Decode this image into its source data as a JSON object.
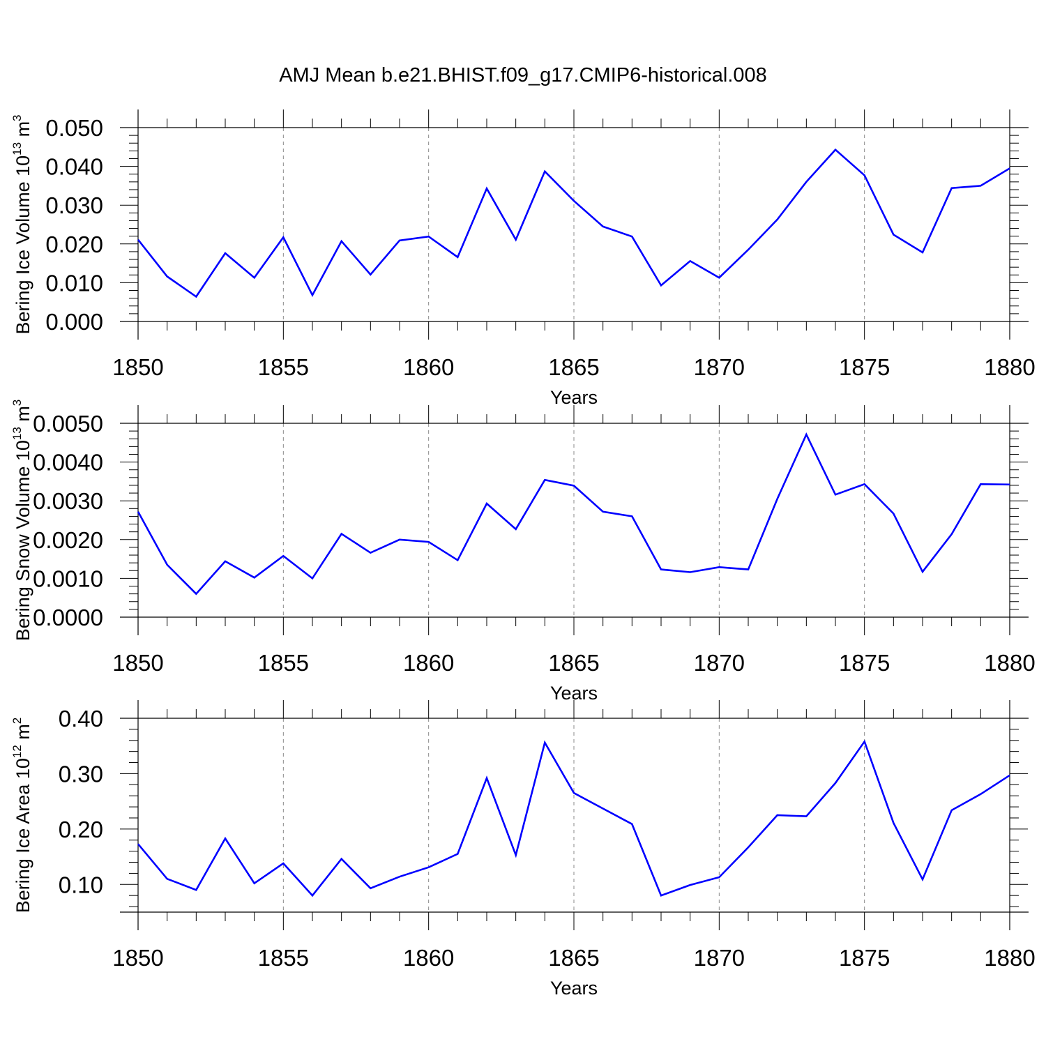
{
  "title": "AMJ Mean b.e21.BHIST.f09_g17.CMIP6-historical.008",
  "colors": {
    "line": "#0000ff",
    "axis": "#000000",
    "grid": "#888888"
  },
  "chart_data": [
    {
      "type": "line",
      "ylabel_text": "Bering Ice Volume 10",
      "ylabel_exp": "13",
      "ylabel_unit": " m",
      "ylabel_unit_exp": "3",
      "xlabel": "Years",
      "xlim": [
        1850,
        1880
      ],
      "ylim": [
        0.0,
        0.05
      ],
      "yticks": [
        "0.000",
        "0.010",
        "0.020",
        "0.030",
        "0.040",
        "0.050"
      ],
      "xticks": [
        "1850",
        "1855",
        "1860",
        "1865",
        "1870",
        "1875",
        "1880"
      ],
      "x": [
        1850,
        1851,
        1852,
        1853,
        1854,
        1855,
        1856,
        1857,
        1858,
        1859,
        1860,
        1861,
        1862,
        1863,
        1864,
        1865,
        1866,
        1867,
        1868,
        1869,
        1870,
        1871,
        1872,
        1873,
        1874,
        1875,
        1876,
        1877,
        1878,
        1879,
        1880
      ],
      "values": [
        0.0211,
        0.0116,
        0.0064,
        0.0176,
        0.0113,
        0.0217,
        0.0068,
        0.0207,
        0.0121,
        0.0209,
        0.0219,
        0.0166,
        0.0343,
        0.0211,
        0.0387,
        0.0311,
        0.0245,
        0.0219,
        0.0093,
        0.0156,
        0.0113,
        0.0185,
        0.0263,
        0.036,
        0.0443,
        0.0377,
        0.0224,
        0.0178,
        0.0344,
        0.035,
        0.0395
      ]
    },
    {
      "type": "line",
      "ylabel_text": "Bering Snow Volume 10",
      "ylabel_exp": "13",
      "ylabel_unit": " m",
      "ylabel_unit_exp": "3",
      "xlabel": "Years",
      "xlim": [
        1850,
        1880
      ],
      "ylim": [
        0.0,
        0.005
      ],
      "yticks": [
        "0.0000",
        "0.0010",
        "0.0020",
        "0.0030",
        "0.0040",
        "0.0050"
      ],
      "xticks": [
        "1850",
        "1855",
        "1860",
        "1865",
        "1870",
        "1875",
        "1880"
      ],
      "x": [
        1850,
        1851,
        1852,
        1853,
        1854,
        1855,
        1856,
        1857,
        1858,
        1859,
        1860,
        1861,
        1862,
        1863,
        1864,
        1865,
        1866,
        1867,
        1868,
        1869,
        1870,
        1871,
        1872,
        1873,
        1874,
        1875,
        1876,
        1877,
        1878,
        1879,
        1880
      ],
      "values": [
        0.00272,
        0.00135,
        0.0006,
        0.00144,
        0.00102,
        0.00158,
        0.001,
        0.00215,
        0.00166,
        0.002,
        0.00194,
        0.00147,
        0.00293,
        0.00227,
        0.00354,
        0.00339,
        0.00272,
        0.0026,
        0.00123,
        0.00116,
        0.00129,
        0.00123,
        0.00305,
        0.00471,
        0.00316,
        0.00343,
        0.00267,
        0.00117,
        0.00214,
        0.00343,
        0.00342
      ]
    },
    {
      "type": "line",
      "ylabel_text": "Bering Ice Area 10",
      "ylabel_exp": "12",
      "ylabel_unit": " m",
      "ylabel_unit_exp": "2",
      "xlabel": "Years",
      "xlim": [
        1850,
        1880
      ],
      "ylim": [
        0.05,
        0.4
      ],
      "yticks": [
        "0.10",
        "0.20",
        "0.30",
        "0.40"
      ],
      "xticks": [
        "1850",
        "1855",
        "1860",
        "1865",
        "1870",
        "1875",
        "1880"
      ],
      "x": [
        1850,
        1851,
        1852,
        1853,
        1854,
        1855,
        1856,
        1857,
        1858,
        1859,
        1860,
        1861,
        1862,
        1863,
        1864,
        1865,
        1866,
        1867,
        1868,
        1869,
        1870,
        1871,
        1872,
        1873,
        1874,
        1875,
        1876,
        1877,
        1878,
        1879,
        1880
      ],
      "values": [
        0.173,
        0.11,
        0.09,
        0.183,
        0.102,
        0.138,
        0.08,
        0.146,
        0.093,
        0.114,
        0.131,
        0.155,
        0.292,
        0.153,
        0.356,
        0.265,
        0.237,
        0.209,
        0.08,
        0.099,
        0.113,
        0.167,
        0.225,
        0.223,
        0.283,
        0.358,
        0.211,
        0.109,
        0.234,
        0.263,
        0.297
      ]
    }
  ]
}
